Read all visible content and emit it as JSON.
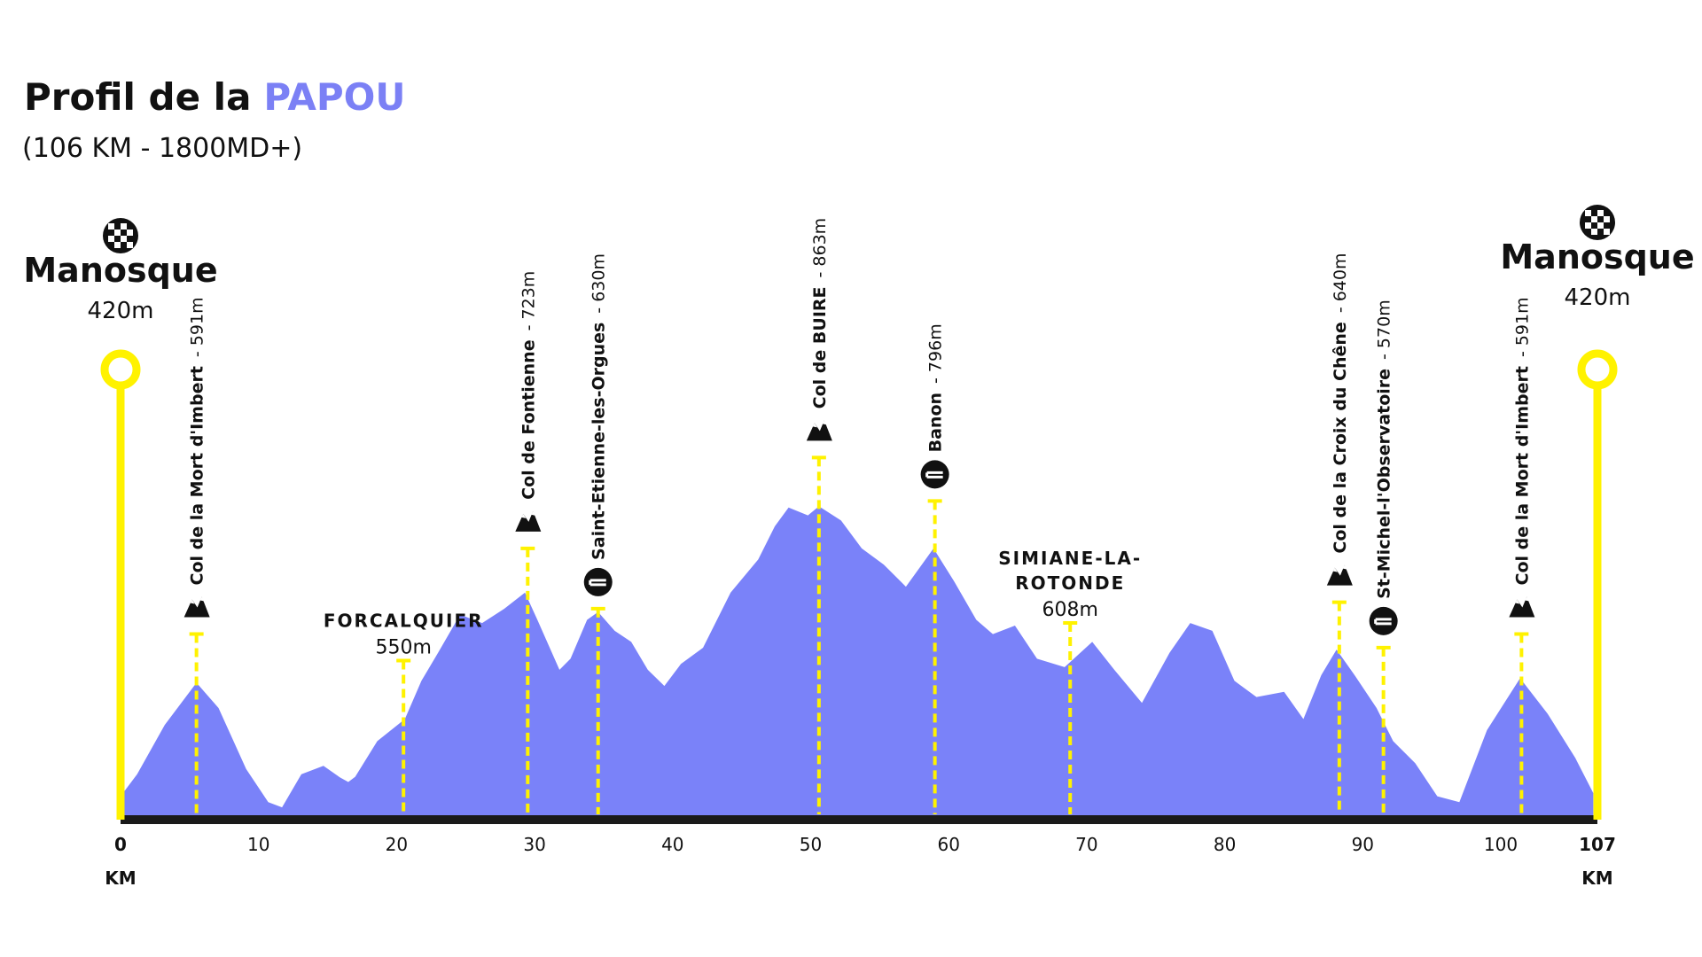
{
  "chart_data": {
    "type": "area",
    "title": "Profil de la",
    "title_highlight": "PAPOU",
    "highlight_color": "#7b80f5",
    "subtitle": "(106 KM - 1800MD+)",
    "color": "#7a82f9",
    "marker_color": "#fff200",
    "x_unit": "KM",
    "xlim": [
      0,
      107
    ],
    "xticks": [
      0,
      10,
      20,
      30,
      40,
      50,
      60,
      70,
      80,
      90,
      100,
      107
    ],
    "ylim": [
      380,
      1000
    ],
    "grid": false,
    "x": [
      0,
      1.2,
      3.2,
      5.5,
      7.1,
      9.1,
      10.7,
      11.7,
      13.1,
      14.7,
      15.9,
      16.5,
      17,
      18.6,
      20.6,
      21.8,
      23,
      24.6,
      26.2,
      27.8,
      29.3,
      30.2,
      31.8,
      32.6,
      33.8,
      34.6,
      35.8,
      37,
      38.2,
      39.4,
      40.6,
      42.2,
      44.2,
      46.2,
      47.4,
      48.4,
      49.8,
      50.6,
      52.2,
      53.7,
      55.3,
      56.9,
      58.9,
      60.4,
      62,
      63.2,
      64.8,
      66.4,
      68.4,
      70.4,
      72,
      74,
      76,
      77.5,
      79.1,
      80.7,
      82.3,
      84.3,
      85.7,
      87,
      88.1,
      89.4,
      91,
      92.2,
      93.8,
      95.4,
      97,
      99,
      101.4,
      103.4,
      105.4,
      106.7
    ],
    "values": [
      416,
      450,
      526,
      591,
      552,
      458,
      407,
      399,
      450,
      463,
      445,
      438,
      446,
      501,
      535,
      594,
      637,
      696,
      683,
      705,
      730,
      688,
      611,
      628,
      688,
      700,
      671,
      654,
      611,
      586,
      620,
      645,
      730,
      781,
      832,
      861,
      849,
      863,
      841,
      798,
      773,
      739,
      798,
      747,
      688,
      666,
      679,
      628,
      615,
      654,
      611,
      560,
      637,
      683,
      671,
      594,
      569,
      577,
      535,
      603,
      642,
      603,
      552,
      501,
      467,
      416,
      407,
      518,
      598,
      543,
      475,
      421
    ],
    "endpoints": [
      {
        "name": "Manosque",
        "km": 0,
        "elevation": 420,
        "elevation_label": "420m"
      },
      {
        "name": "Manosque",
        "km": 107,
        "elevation": 420,
        "elevation_label": "420m"
      }
    ],
    "waypoints": [
      {
        "name": "Col de la Mort d'Imbert",
        "km": 5.5,
        "elevation": 591,
        "elevation_label": "- 591m",
        "icon": "col",
        "label_style": "vertical"
      },
      {
        "name": "FORCALQUIER",
        "km": 20.5,
        "elevation": 550,
        "elevation_label": "550m",
        "icon": "none",
        "label_style": "horizontal"
      },
      {
        "name": "Col de Fontienne",
        "km": 29.5,
        "elevation": 723,
        "elevation_label": "- 723m",
        "icon": "col",
        "label_style": "vertical"
      },
      {
        "name": "Saint-Etienne-les-Orgues",
        "km": 34.6,
        "elevation": 630,
        "elevation_label": "- 630m",
        "icon": "food",
        "label_style": "vertical"
      },
      {
        "name": "Col de BUIRE",
        "km": 50.6,
        "elevation": 863,
        "elevation_label": "- 863m",
        "icon": "col",
        "label_style": "vertical"
      },
      {
        "name": "Banon",
        "km": 59,
        "elevation": 796,
        "elevation_label": "- 796m",
        "icon": "food",
        "label_style": "vertical"
      },
      {
        "name": [
          "SIMIANE-LA-",
          "ROTONDE"
        ],
        "km": 68.8,
        "elevation": 608,
        "elevation_label": "608m",
        "icon": "none",
        "label_style": "horizontal"
      },
      {
        "name": "Col de la Croix du Chêne",
        "km": 88.3,
        "elevation": 640,
        "elevation_label": "- 640m",
        "icon": "col",
        "label_style": "vertical"
      },
      {
        "name": "St-Michel-l'Observatoire",
        "km": 91.5,
        "elevation": 570,
        "elevation_label": "- 570m",
        "icon": "food",
        "label_style": "vertical"
      },
      {
        "name": "Col de la Mort d'Imbert",
        "km": 101.5,
        "elevation": 591,
        "elevation_label": "- 591m",
        "icon": "col",
        "label_style": "vertical"
      }
    ]
  }
}
